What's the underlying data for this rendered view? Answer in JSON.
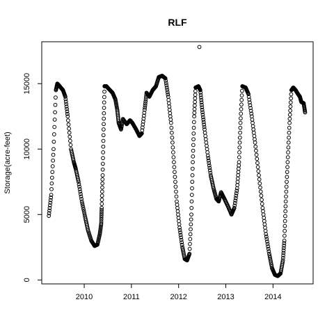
{
  "chart_data": {
    "type": "scatter",
    "title": "RLF",
    "xlabel": "",
    "ylabel": "Storage(acre-feet)",
    "x_ticks": [
      "2010",
      "2011",
      "2012",
      "2013",
      "2014"
    ],
    "y_ticks": [
      0,
      5000,
      10000,
      15000
    ],
    "xlim": [
      2009.1,
      2014.85
    ],
    "ylim": [
      -300,
      18200
    ],
    "grid": false,
    "marker": "open-circle",
    "color": "#000000",
    "series": [
      {
        "points": [
          [
            2009.25,
            4900
          ],
          [
            2009.3,
            6500
          ],
          [
            2009.35,
            10000
          ],
          [
            2009.4,
            14500
          ],
          [
            2009.43,
            15000
          ],
          [
            2009.48,
            14800
          ],
          [
            2009.55,
            14500
          ],
          [
            2009.6,
            14000
          ],
          [
            2009.65,
            12500
          ],
          [
            2009.72,
            10000
          ],
          [
            2009.78,
            9000
          ],
          [
            2009.82,
            8500
          ],
          [
            2009.88,
            7500
          ],
          [
            2009.95,
            6000
          ],
          [
            2010.02,
            4800
          ],
          [
            2010.08,
            3800
          ],
          [
            2010.15,
            3000
          ],
          [
            2010.22,
            2600
          ],
          [
            2010.28,
            2700
          ],
          [
            2010.33,
            3500
          ],
          [
            2010.36,
            4300
          ],
          [
            2010.37,
            5500
          ],
          [
            2010.39,
            8000
          ],
          [
            2010.41,
            11500
          ],
          [
            2010.43,
            14800
          ],
          [
            2010.47,
            14800
          ],
          [
            2010.52,
            14600
          ],
          [
            2010.6,
            14300
          ],
          [
            2010.66,
            13800
          ],
          [
            2010.7,
            13000
          ],
          [
            2010.73,
            12000
          ],
          [
            2010.78,
            11500
          ],
          [
            2010.82,
            12300
          ],
          [
            2010.9,
            11900
          ],
          [
            2010.97,
            12200
          ],
          [
            2011.02,
            12000
          ],
          [
            2011.1,
            11500
          ],
          [
            2011.17,
            11000
          ],
          [
            2011.22,
            11200
          ],
          [
            2011.28,
            13000
          ],
          [
            2011.32,
            14300
          ],
          [
            2011.38,
            14000
          ],
          [
            2011.45,
            14500
          ],
          [
            2011.52,
            14800
          ],
          [
            2011.58,
            15500
          ],
          [
            2011.65,
            15600
          ],
          [
            2011.72,
            15400
          ],
          [
            2011.78,
            14000
          ],
          [
            2011.84,
            12000
          ],
          [
            2011.9,
            9000
          ],
          [
            2011.96,
            6000
          ],
          [
            2012.02,
            4000
          ],
          [
            2012.08,
            2500
          ],
          [
            2012.13,
            1600
          ],
          [
            2012.18,
            1500
          ],
          [
            2012.23,
            2000
          ],
          [
            2012.27,
            5000
          ],
          [
            2012.3,
            9000
          ],
          [
            2012.33,
            12500
          ],
          [
            2012.36,
            14700
          ],
          [
            2012.42,
            14800
          ],
          [
            2012.46,
            14500
          ],
          [
            2012.5,
            13000
          ],
          [
            2012.55,
            11500
          ],
          [
            2012.62,
            9500
          ],
          [
            2012.68,
            8000
          ],
          [
            2012.74,
            7000
          ],
          [
            2012.8,
            6200
          ],
          [
            2012.85,
            6000
          ],
          [
            2012.9,
            6700
          ],
          [
            2012.97,
            6200
          ],
          [
            2013.05,
            5600
          ],
          [
            2013.12,
            5000
          ],
          [
            2013.18,
            5500
          ],
          [
            2013.24,
            7000
          ],
          [
            2013.28,
            9000
          ],
          [
            2013.31,
            12000
          ],
          [
            2013.35,
            14800
          ],
          [
            2013.42,
            14700
          ],
          [
            2013.48,
            14200
          ],
          [
            2013.55,
            12500
          ],
          [
            2013.62,
            10500
          ],
          [
            2013.7,
            8000
          ],
          [
            2013.78,
            5500
          ],
          [
            2013.85,
            3500
          ],
          [
            2013.92,
            2000
          ],
          [
            2013.98,
            900
          ],
          [
            2014.04,
            400
          ],
          [
            2014.1,
            300
          ],
          [
            2014.16,
            500
          ],
          [
            2014.21,
            1500
          ],
          [
            2014.24,
            3000
          ],
          [
            2014.27,
            6000
          ],
          [
            2014.31,
            9000
          ],
          [
            2014.35,
            12000
          ],
          [
            2014.39,
            14500
          ],
          [
            2014.43,
            14700
          ],
          [
            2014.48,
            14500
          ],
          [
            2014.53,
            14200
          ],
          [
            2014.57,
            14000
          ],
          [
            2014.6,
            13600
          ],
          [
            2014.65,
            13500
          ],
          [
            2014.68,
            12800
          ],
          [
            2012.44,
            17800
          ]
        ]
      }
    ]
  }
}
